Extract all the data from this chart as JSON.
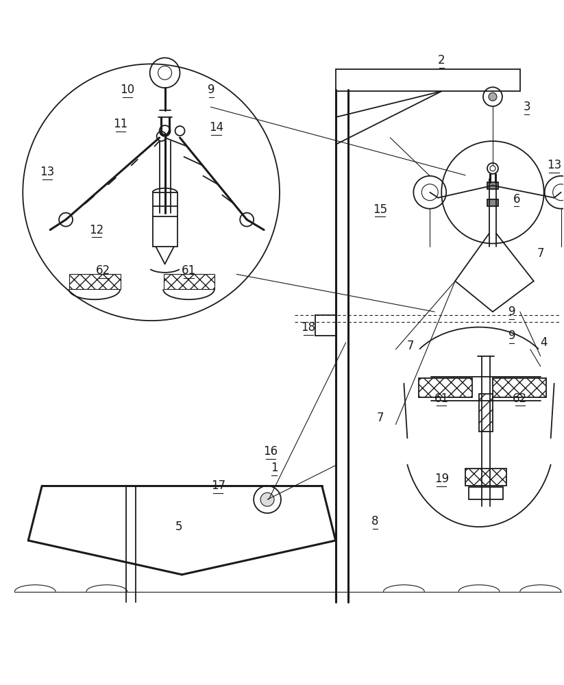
{
  "bg_color": "#ffffff",
  "line_color": "#1a1a1a",
  "lw": 1.3,
  "tlw": 0.8,
  "thk": 2.2
}
